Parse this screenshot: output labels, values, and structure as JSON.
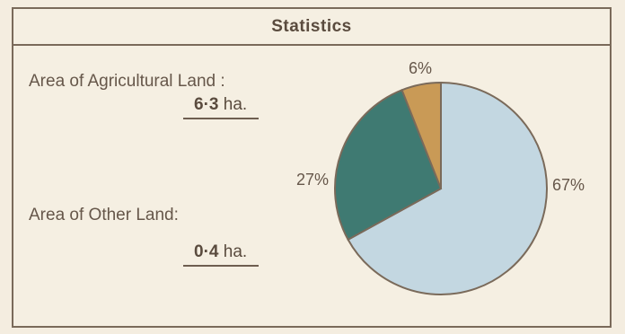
{
  "title": "Statistics",
  "agricultural": {
    "label": "Area of Agricultural Land :",
    "number": "6·3",
    "unit": "ha."
  },
  "other": {
    "label": "Area of Other Land:",
    "number": "0·4",
    "unit": "ha."
  },
  "colors": {
    "agricultural": "#c3d7e1",
    "other_land": "#3f7a72",
    "remaining": "#c99a56",
    "border": "#7a6a5a"
  },
  "chart_data": {
    "type": "pie",
    "slices": [
      {
        "label": "67%",
        "value": 67
      },
      {
        "label": "6%",
        "value": 6
      },
      {
        "label": "27%",
        "value": 27
      }
    ]
  }
}
